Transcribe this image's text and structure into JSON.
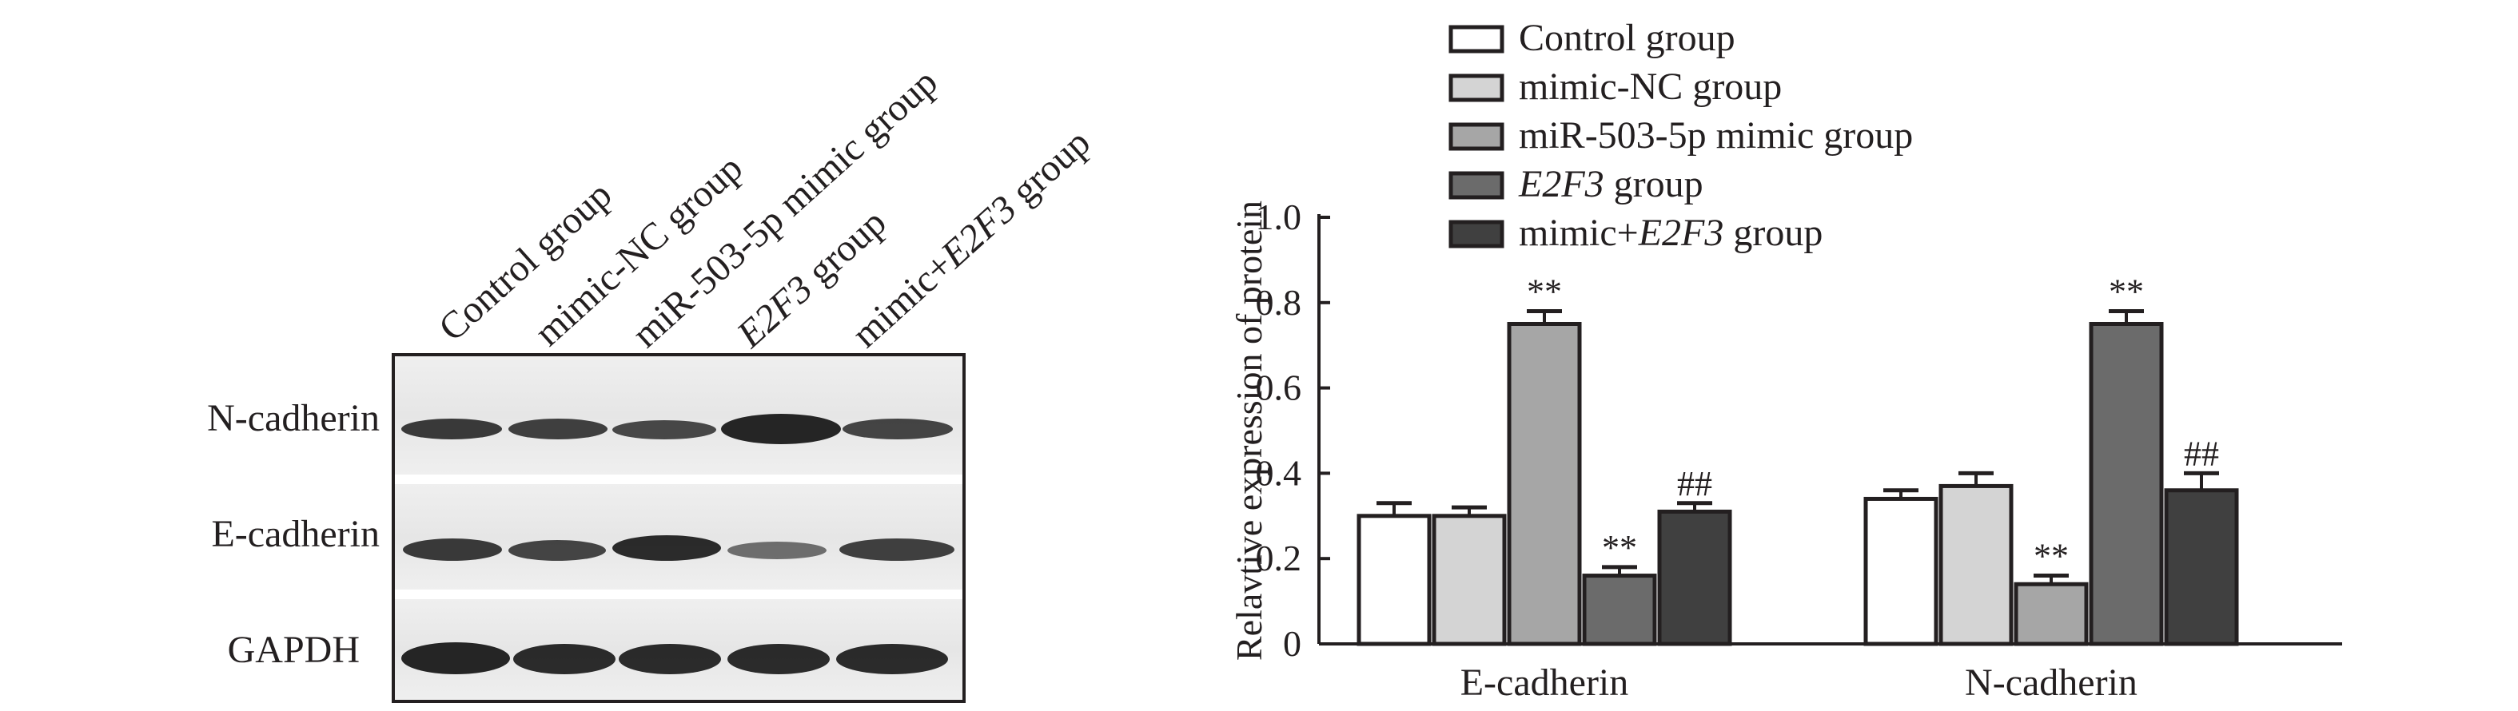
{
  "blot": {
    "lanes": [
      "Control group",
      "mimic-NC group",
      "miR-503-5p mimic group",
      "E2F3 group",
      "mimic+E2F3 group"
    ],
    "rows": [
      "N-cadherin",
      "E-cadherin",
      "GAPDH"
    ]
  },
  "colors": {
    "Control group": "#ffffff",
    "mimic-NC group": "#d4d4d4",
    "miR-503-5p mimic group": "#a6a6a6",
    "E2F3 group": "#6b6b6b",
    "mimic+E2F3 group": "#404040",
    "axis": "#231f20"
  },
  "chart_data": {
    "type": "bar",
    "categories": [
      "E-cadherin",
      "N-cadherin"
    ],
    "ylabel": "Relavtive expression of protein",
    "ylim": [
      0,
      1.0
    ],
    "yticks": [
      "0",
      "0.2",
      "0.4",
      "0.6",
      "0.8",
      "1.0"
    ],
    "legend_position": "top",
    "series": [
      {
        "name": "Control group",
        "values": [
          0.3,
          0.34
        ],
        "errors": [
          0.03,
          0.02
        ],
        "marks": [
          "",
          ""
        ]
      },
      {
        "name": "mimic-NC group",
        "values": [
          0.3,
          0.37
        ],
        "errors": [
          0.02,
          0.03
        ],
        "marks": [
          "",
          ""
        ]
      },
      {
        "name": "miR-503-5p mimic group",
        "values": [
          0.75,
          0.14
        ],
        "errors": [
          0.03,
          0.02
        ],
        "marks": [
          "**",
          "**"
        ]
      },
      {
        "name": "E2F3 group",
        "values": [
          0.16,
          0.75
        ],
        "errors": [
          0.02,
          0.03
        ],
        "marks": [
          "**",
          "**"
        ]
      },
      {
        "name": "mimic+E2F3 group",
        "values": [
          0.31,
          0.36
        ],
        "errors": [
          0.02,
          0.04
        ],
        "marks": [
          "##",
          "##"
        ]
      }
    ]
  }
}
